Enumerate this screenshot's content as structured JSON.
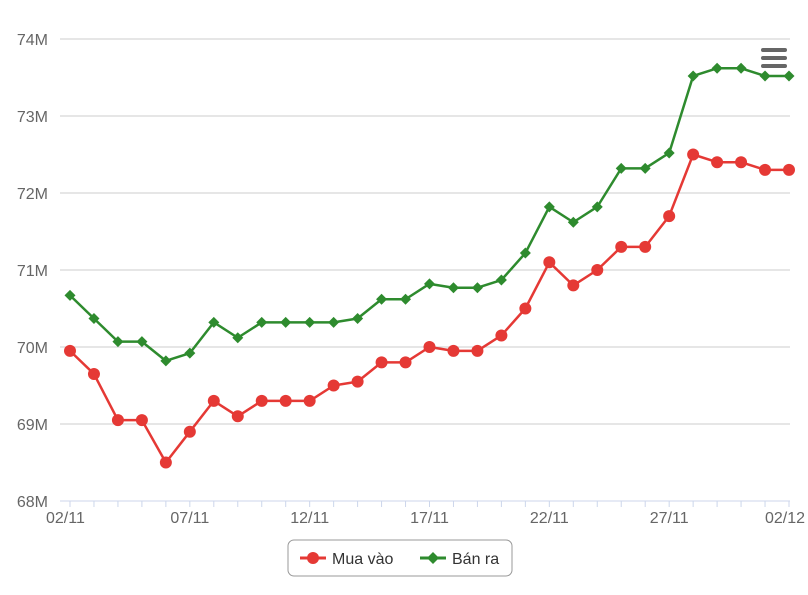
{
  "chart_data": {
    "type": "line",
    "title": "",
    "xlabel": "",
    "ylabel": "",
    "ylim": [
      68000000,
      74000000
    ],
    "yticks": [
      68000000,
      69000000,
      70000000,
      71000000,
      72000000,
      73000000,
      74000000
    ],
    "ytick_labels": [
      "68M",
      "69M",
      "70M",
      "71M",
      "72M",
      "73M",
      "74M"
    ],
    "categories": [
      "02/11",
      "03/11",
      "04/11",
      "05/11",
      "06/11",
      "07/11",
      "08/11",
      "09/11",
      "10/11",
      "11/11",
      "12/11",
      "13/11",
      "14/11",
      "15/11",
      "16/11",
      "17/11",
      "18/11",
      "19/11",
      "20/11",
      "21/11",
      "22/11",
      "23/11",
      "24/11",
      "25/11",
      "26/11",
      "27/11",
      "28/11",
      "29/11",
      "30/11",
      "01/12",
      "02/12"
    ],
    "xtick_labels": [
      "02/11",
      "07/11",
      "12/11",
      "17/11",
      "22/11",
      "27/11",
      "02/12"
    ],
    "series": [
      {
        "name": "Mua vào",
        "color": "#e53935",
        "marker": "circle",
        "values": [
          69950000,
          69650000,
          69050000,
          69050000,
          68500000,
          68900000,
          69300000,
          69100000,
          69300000,
          69300000,
          69300000,
          69500000,
          69550000,
          69800000,
          69800000,
          70000000,
          69950000,
          69950000,
          70150000,
          70500000,
          71100000,
          70800000,
          71000000,
          71300000,
          71300000,
          71700000,
          72500000,
          72400000,
          72400000,
          72300000,
          72300000
        ]
      },
      {
        "name": "Bán ra",
        "color": "#2e8b2e",
        "marker": "diamond",
        "values": [
          70670000,
          70370000,
          70070000,
          70070000,
          69820000,
          69920000,
          70320000,
          70120000,
          70320000,
          70320000,
          70320000,
          70320000,
          70370000,
          70620000,
          70620000,
          70820000,
          70770000,
          70770000,
          70870000,
          71220000,
          71820000,
          71620000,
          71820000,
          72320000,
          72320000,
          72520000,
          73520000,
          73620000,
          73620000,
          73520000,
          73520000
        ]
      }
    ],
    "grid": true,
    "legend_position": "bottom-center",
    "menu_icon": "hamburger-menu-icon"
  }
}
